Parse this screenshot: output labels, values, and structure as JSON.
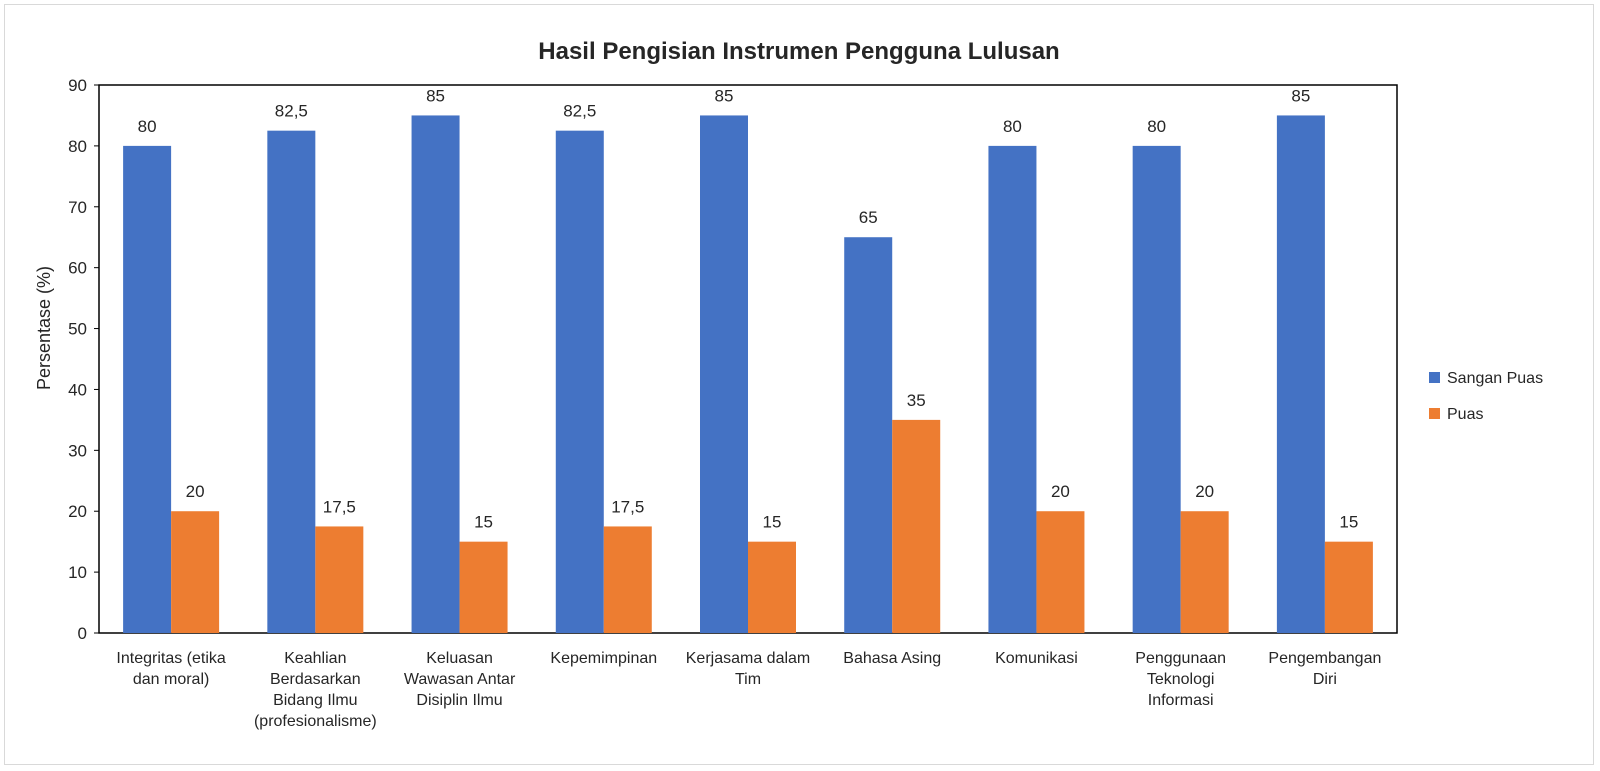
{
  "chart_data": {
    "type": "bar",
    "title": "Hasil Pengisian Instrumen Pengguna Lulusan",
    "xlabel": "",
    "ylabel": "Persentase (%)",
    "ylim": [
      0,
      90
    ],
    "yticks": [
      0,
      10,
      20,
      30,
      40,
      50,
      60,
      70,
      80,
      90
    ],
    "grid": false,
    "legend_position": "right",
    "categories": [
      [
        "Integritas (etika",
        "dan moral)"
      ],
      [
        "Keahlian",
        "Berdasarkan",
        "Bidang Ilmu",
        "(profesionalisme)"
      ],
      [
        "Keluasan",
        "Wawasan Antar",
        "Disiplin Ilmu"
      ],
      [
        "Kepemimpinan"
      ],
      [
        "Kerjasama dalam",
        "Tim"
      ],
      [
        "Bahasa Asing"
      ],
      [
        "Komunikasi"
      ],
      [
        "Penggunaan",
        "Teknologi",
        "Informasi"
      ],
      [
        "Pengembangan",
        "Diri"
      ]
    ],
    "series": [
      {
        "name": "Sangan Puas",
        "color": "#4472C4",
        "values": [
          80,
          82.5,
          85,
          82.5,
          85,
          65,
          80,
          80,
          85
        ],
        "labels": [
          "80",
          "82,5",
          "85",
          "82,5",
          "85",
          "65",
          "80",
          "80",
          "85"
        ]
      },
      {
        "name": "Puas",
        "color": "#ED7D31",
        "values": [
          20,
          17.5,
          15,
          17.5,
          15,
          35,
          20,
          20,
          15
        ],
        "labels": [
          "20",
          "17,5",
          "15",
          "17,5",
          "15",
          "35",
          "20",
          "20",
          "15"
        ]
      }
    ]
  }
}
